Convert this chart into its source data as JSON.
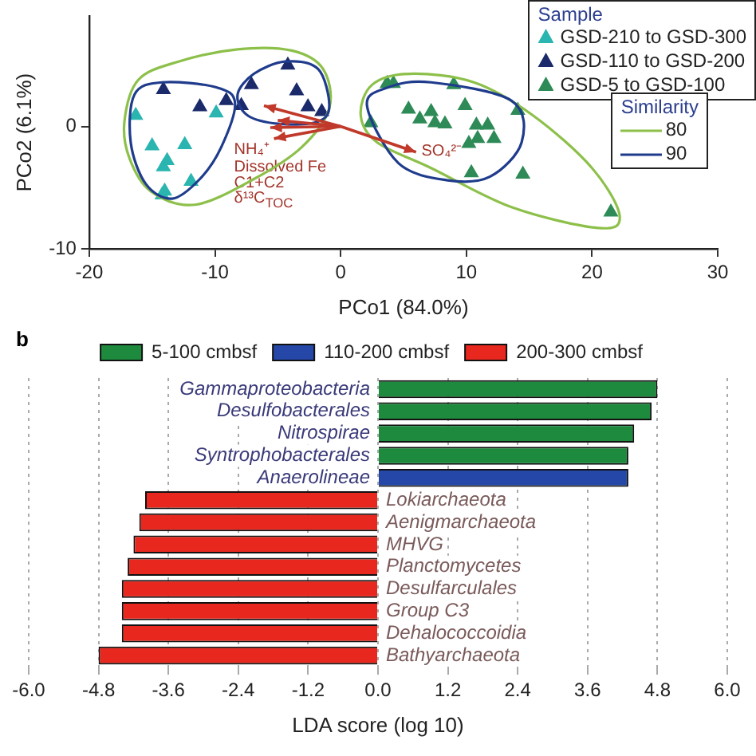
{
  "chart_data": [
    {
      "type": "scatter",
      "xlabel": "PCo1 (84.0%)",
      "ylabel": "PCo2 (6.1%)",
      "legend_title": "Sample",
      "legend": "top right",
      "marker": "triangle",
      "annotations": [
        "Similarity",
        "80",
        "90",
        "NH₄⁺",
        "Dissolved Fe",
        "C1+C2",
        "δ¹³C$_{TOC}$",
        "SO₄²⁻"
      ],
      "xlim": [
        -20,
        30
      ],
      "xticks": [
        -20,
        -10,
        0,
        10,
        20,
        30
      ],
      "ylim": [
        -10,
        9
      ],
      "yticks": [
        -10,
        0
      ],
      "grid": false,
      "series": [
        {
          "name": "GSD-210 to GSD-300",
          "color": "#2bb5b0",
          "x": [
            -16.3,
            -15.0,
            -12.4,
            -13.8,
            -14.1,
            -11.9,
            -14.0,
            -9.9,
            -14.2
          ],
          "values": [
            0.9,
            -1.6,
            -1.5,
            -2.8,
            -3.3,
            -4.5,
            -5.3,
            1.1,
            -5.6
          ]
        },
        {
          "name": "GSD-110 to GSD-200",
          "color": "#1b2a6b",
          "x": [
            -14.1,
            -11.2,
            -9.1,
            -7.1,
            -4.2,
            -3.5,
            -2.6,
            -1.5,
            -7.9
          ],
          "values": [
            3.0,
            1.6,
            2.1,
            3.4,
            5.0,
            2.9,
            1.6,
            1.2,
            1.7
          ]
        },
        {
          "name": "GSD-5 to GSD-100",
          "color": "#2e8b57",
          "x": [
            3.7,
            4.2,
            2.4,
            5.4,
            6.3,
            7.2,
            7.5,
            8.3,
            9.0,
            9.9,
            10.8,
            11.7,
            10.9,
            10.2,
            12.2,
            14.1,
            10.4,
            14.5,
            21.5
          ],
          "values": [
            3.5,
            3.5,
            0.3,
            1.4,
            0.6,
            1.2,
            0.3,
            0.2,
            3.4,
            1.7,
            0.1,
            0.1,
            -1.0,
            -1.4,
            -1.0,
            1.3,
            -3.8,
            -3.9,
            -7.0
          ]
        }
      ]
    },
    {
      "type": "bar",
      "orientation": "horizontal",
      "annotations": [
        "b"
      ],
      "xlabel": "LDA score (log 10)",
      "legend": "top",
      "grid": "x",
      "xlim": [
        -6,
        6
      ],
      "xticks": [
        {
          "value": -6,
          "label": "-6.0"
        },
        {
          "value": -4.8,
          "label": "-4.8"
        },
        {
          "value": -3.6,
          "label": "-3.6"
        },
        {
          "value": -2.4,
          "label": "-2.4"
        },
        {
          "value": -1.2,
          "label": "-1.2"
        },
        {
          "value": 0,
          "label": "0.0"
        },
        {
          "value": 1.2,
          "label": "1.2"
        },
        {
          "value": 2.4,
          "label": "2.4"
        },
        {
          "value": 3.6,
          "label": "3.6"
        },
        {
          "value": 4.8,
          "label": "4.8"
        },
        {
          "value": 6,
          "label": "6.0"
        }
      ],
      "categories": [
        "Gammaproteobacteria",
        "Desulfobacterales",
        "Nitrospirae",
        "Syntrophobacterales",
        "Anaerolineae",
        "Lokiarchaeota",
        "Aenigmarchaeota",
        "MHVG",
        "Planctomycetes",
        "Desulfarculales",
        "Group C3",
        "Dehalococcoidia",
        "Bathyarchaeota"
      ],
      "series": [
        {
          "name": "5-100 cmbsf",
          "color": "#1e8a3e",
          "values": [
            4.8,
            4.7,
            4.4,
            4.3,
            null,
            null,
            null,
            null,
            null,
            null,
            null,
            null,
            null
          ]
        },
        {
          "name": "110-200 cmbsf",
          "color": "#2548a8",
          "values": [
            null,
            null,
            null,
            null,
            4.3,
            null,
            null,
            null,
            null,
            null,
            null,
            null,
            null
          ]
        },
        {
          "name": "200-300 cmbsf",
          "color": "#e8281e",
          "values": [
            null,
            null,
            null,
            null,
            null,
            -4.0,
            -4.1,
            -4.2,
            -4.3,
            -4.4,
            -4.4,
            -4.4,
            -4.8
          ]
        }
      ]
    }
  ]
}
